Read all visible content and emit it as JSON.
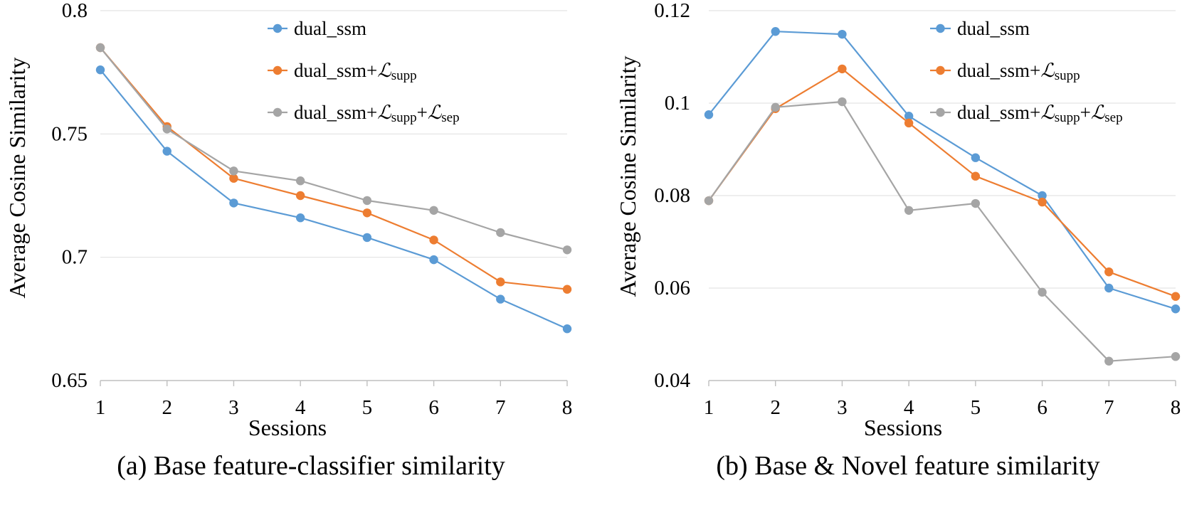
{
  "chart_data": [
    {
      "type": "line",
      "caption": "(a) Base feature-classifier similarity",
      "xlabel": "Sessions",
      "ylabel": "Average Cosine Similarity",
      "categories": [
        "1",
        "2",
        "3",
        "4",
        "5",
        "6",
        "7",
        "8"
      ],
      "ylim": [
        0.65,
        0.8
      ],
      "yticks": [
        0.65,
        0.7,
        0.75,
        0.8
      ],
      "ytick_labels": [
        "0.65",
        "0.7",
        "0.75",
        "0.8"
      ],
      "grid": true,
      "legend_position": "top-right",
      "series": [
        {
          "label": [
            {
              "text": "dual_ssm"
            }
          ],
          "color": "#5B9BD5",
          "values": [
            0.776,
            0.743,
            0.722,
            0.716,
            0.708,
            0.699,
            0.683,
            0.671
          ]
        },
        {
          "label": [
            {
              "text": "dual_ssm+"
            },
            {
              "text": "ℒ",
              "math": true
            },
            {
              "text": "supp",
              "sub": true
            }
          ],
          "color": "#ED7D31",
          "values": [
            0.785,
            0.753,
            0.732,
            0.725,
            0.718,
            0.707,
            0.69,
            0.687
          ]
        },
        {
          "label": [
            {
              "text": "dual_ssm+"
            },
            {
              "text": "ℒ",
              "math": true
            },
            {
              "text": "supp",
              "sub": true
            },
            {
              "text": "+"
            },
            {
              "text": "ℒ",
              "math": true
            },
            {
              "text": "sep",
              "sub": true
            }
          ],
          "color": "#A5A5A5",
          "values": [
            0.785,
            0.752,
            0.735,
            0.731,
            0.723,
            0.719,
            0.71,
            0.703
          ]
        }
      ]
    },
    {
      "type": "line",
      "caption": "(b) Base & Novel feature similarity",
      "xlabel": "Sessions",
      "ylabel": "Average Cosine Similarity",
      "categories": [
        "1",
        "2",
        "3",
        "4",
        "5",
        "6",
        "7",
        "8"
      ],
      "ylim": [
        0.04,
        0.12
      ],
      "yticks": [
        0.04,
        0.06,
        0.08,
        0.1,
        0.12
      ],
      "ytick_labels": [
        "0.04",
        "0.06",
        "0.08",
        "0.1",
        "0.12"
      ],
      "grid": true,
      "legend_position": "top-right",
      "series": [
        {
          "label": [
            {
              "text": "dual_ssm"
            }
          ],
          "color": "#5B9BD5",
          "values": [
            0.0975,
            0.1155,
            0.1149,
            0.0972,
            0.0882,
            0.08,
            0.06,
            0.0555
          ]
        },
        {
          "label": [
            {
              "text": "dual_ssm+"
            },
            {
              "text": "ℒ",
              "math": true
            },
            {
              "text": "supp",
              "sub": true
            }
          ],
          "color": "#ED7D31",
          "values": [
            0.0789,
            0.0988,
            0.1074,
            0.0957,
            0.0842,
            0.0786,
            0.0635,
            0.0582
          ]
        },
        {
          "label": [
            {
              "text": "dual_ssm+"
            },
            {
              "text": "ℒ",
              "math": true
            },
            {
              "text": "supp",
              "sub": true
            },
            {
              "text": "+"
            },
            {
              "text": "ℒ",
              "math": true
            },
            {
              "text": "sep",
              "sub": true
            }
          ],
          "color": "#A5A5A5",
          "values": [
            0.0789,
            0.0991,
            0.1003,
            0.0768,
            0.0783,
            0.0591,
            0.0442,
            0.0452
          ]
        }
      ]
    }
  ]
}
